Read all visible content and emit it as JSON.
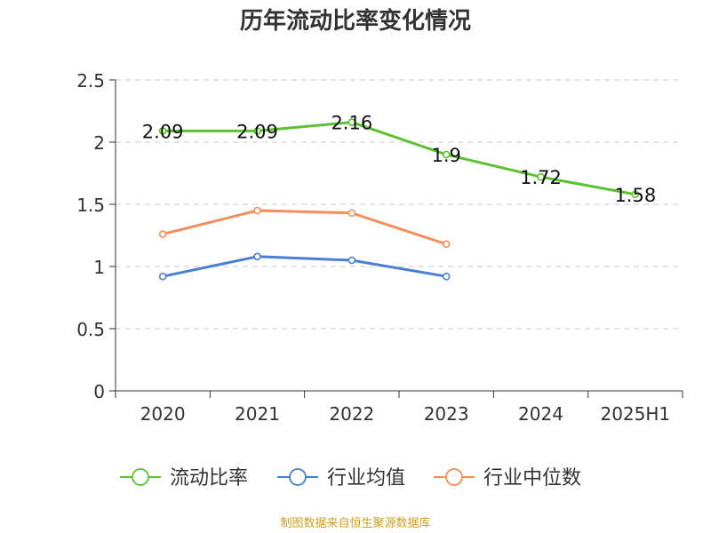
{
  "chart_data": {
    "type": "line",
    "title": "历年流动比率变化情况",
    "categories": [
      "2020",
      "2021",
      "2022",
      "2023",
      "2024",
      "2025H1"
    ],
    "ylim": [
      0,
      2.5
    ],
    "yticks": [
      "0",
      "0.5",
      "1",
      "1.5",
      "2",
      "2.5"
    ],
    "ytick_values": [
      0,
      0.5,
      1,
      1.5,
      2,
      2.5
    ],
    "grid": true,
    "legend_position": "bottom",
    "series": [
      {
        "name": "流动比率",
        "color": "#5cc12f",
        "values": [
          2.09,
          2.09,
          2.16,
          1.9,
          1.72,
          1.58
        ],
        "value_labels": [
          "2.09",
          "2.09",
          "2.16",
          "1.9",
          "1.72",
          "1.58"
        ]
      },
      {
        "name": "行业均值",
        "color": "#4a7fd4",
        "values": [
          0.92,
          1.08,
          1.05,
          0.92,
          null,
          null
        ]
      },
      {
        "name": "行业中位数",
        "color": "#f48e5a",
        "values": [
          1.26,
          1.45,
          1.43,
          1.18,
          null,
          null
        ]
      }
    ]
  },
  "footer": {
    "source": "制图数据来自恒生聚源数据库"
  }
}
